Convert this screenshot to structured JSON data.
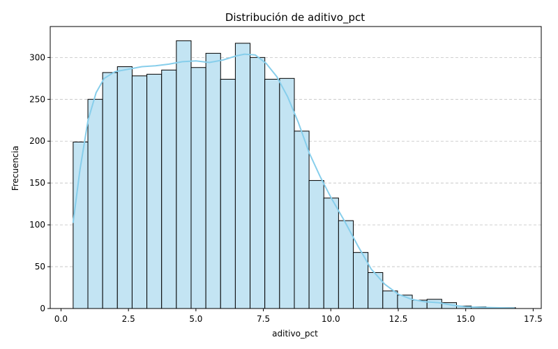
{
  "chart_data": {
    "type": "bar",
    "title": "Distribución de aditivo_pct",
    "xlabel": "aditivo_pct",
    "ylabel": "Frecuencia",
    "xlim": [
      -0.4,
      17.8
    ],
    "ylim": [
      0,
      337
    ],
    "x_ticks": [
      0.0,
      2.5,
      5.0,
      7.5,
      10.0,
      12.5,
      15.0,
      17.5
    ],
    "x_tick_labels": [
      "0.0",
      "2.5",
      "5.0",
      "7.5",
      "10.0",
      "12.5",
      "15.0",
      "17.5"
    ],
    "y_ticks": [
      0,
      50,
      100,
      150,
      200,
      250,
      300
    ],
    "y_tick_labels": [
      "0",
      "50",
      "100",
      "150",
      "200",
      "250",
      "300"
    ],
    "grid": "y-dashed",
    "bin_start": 0.45,
    "bin_width": 0.5465,
    "values": [
      199,
      250,
      282,
      289,
      278,
      280,
      285,
      320,
      288,
      305,
      274,
      317,
      300,
      274,
      275,
      212,
      153,
      132,
      105,
      67,
      43,
      21,
      16,
      10,
      11,
      7,
      3,
      2,
      1,
      1
    ],
    "kde": {
      "x": [
        0.45,
        0.7,
        1.0,
        1.3,
        1.6,
        2.0,
        2.5,
        3.0,
        3.5,
        4.0,
        4.5,
        5.0,
        5.5,
        6.0,
        6.5,
        6.8,
        7.2,
        7.6,
        8.0,
        8.4,
        8.8,
        9.2,
        9.6,
        10.0,
        10.5,
        11.0,
        11.5,
        12.0,
        12.5,
        13.0,
        13.5,
        14.0,
        14.5,
        15.0,
        15.5,
        16.0,
        16.8
      ],
      "y": [
        103,
        165,
        225,
        258,
        275,
        283,
        286,
        289,
        290,
        292,
        295,
        296,
        294,
        297,
        302,
        304,
        303,
        293,
        277,
        253,
        222,
        186,
        158,
        133,
        105,
        75,
        47,
        29,
        17,
        11,
        8,
        7,
        4,
        2,
        1.5,
        1,
        0.5
      ]
    },
    "colors": {
      "bar_fill": "#c3e4f3",
      "bar_edge": "#000000",
      "kde_line": "#87ceeb",
      "grid": "#c0c0c0"
    }
  }
}
